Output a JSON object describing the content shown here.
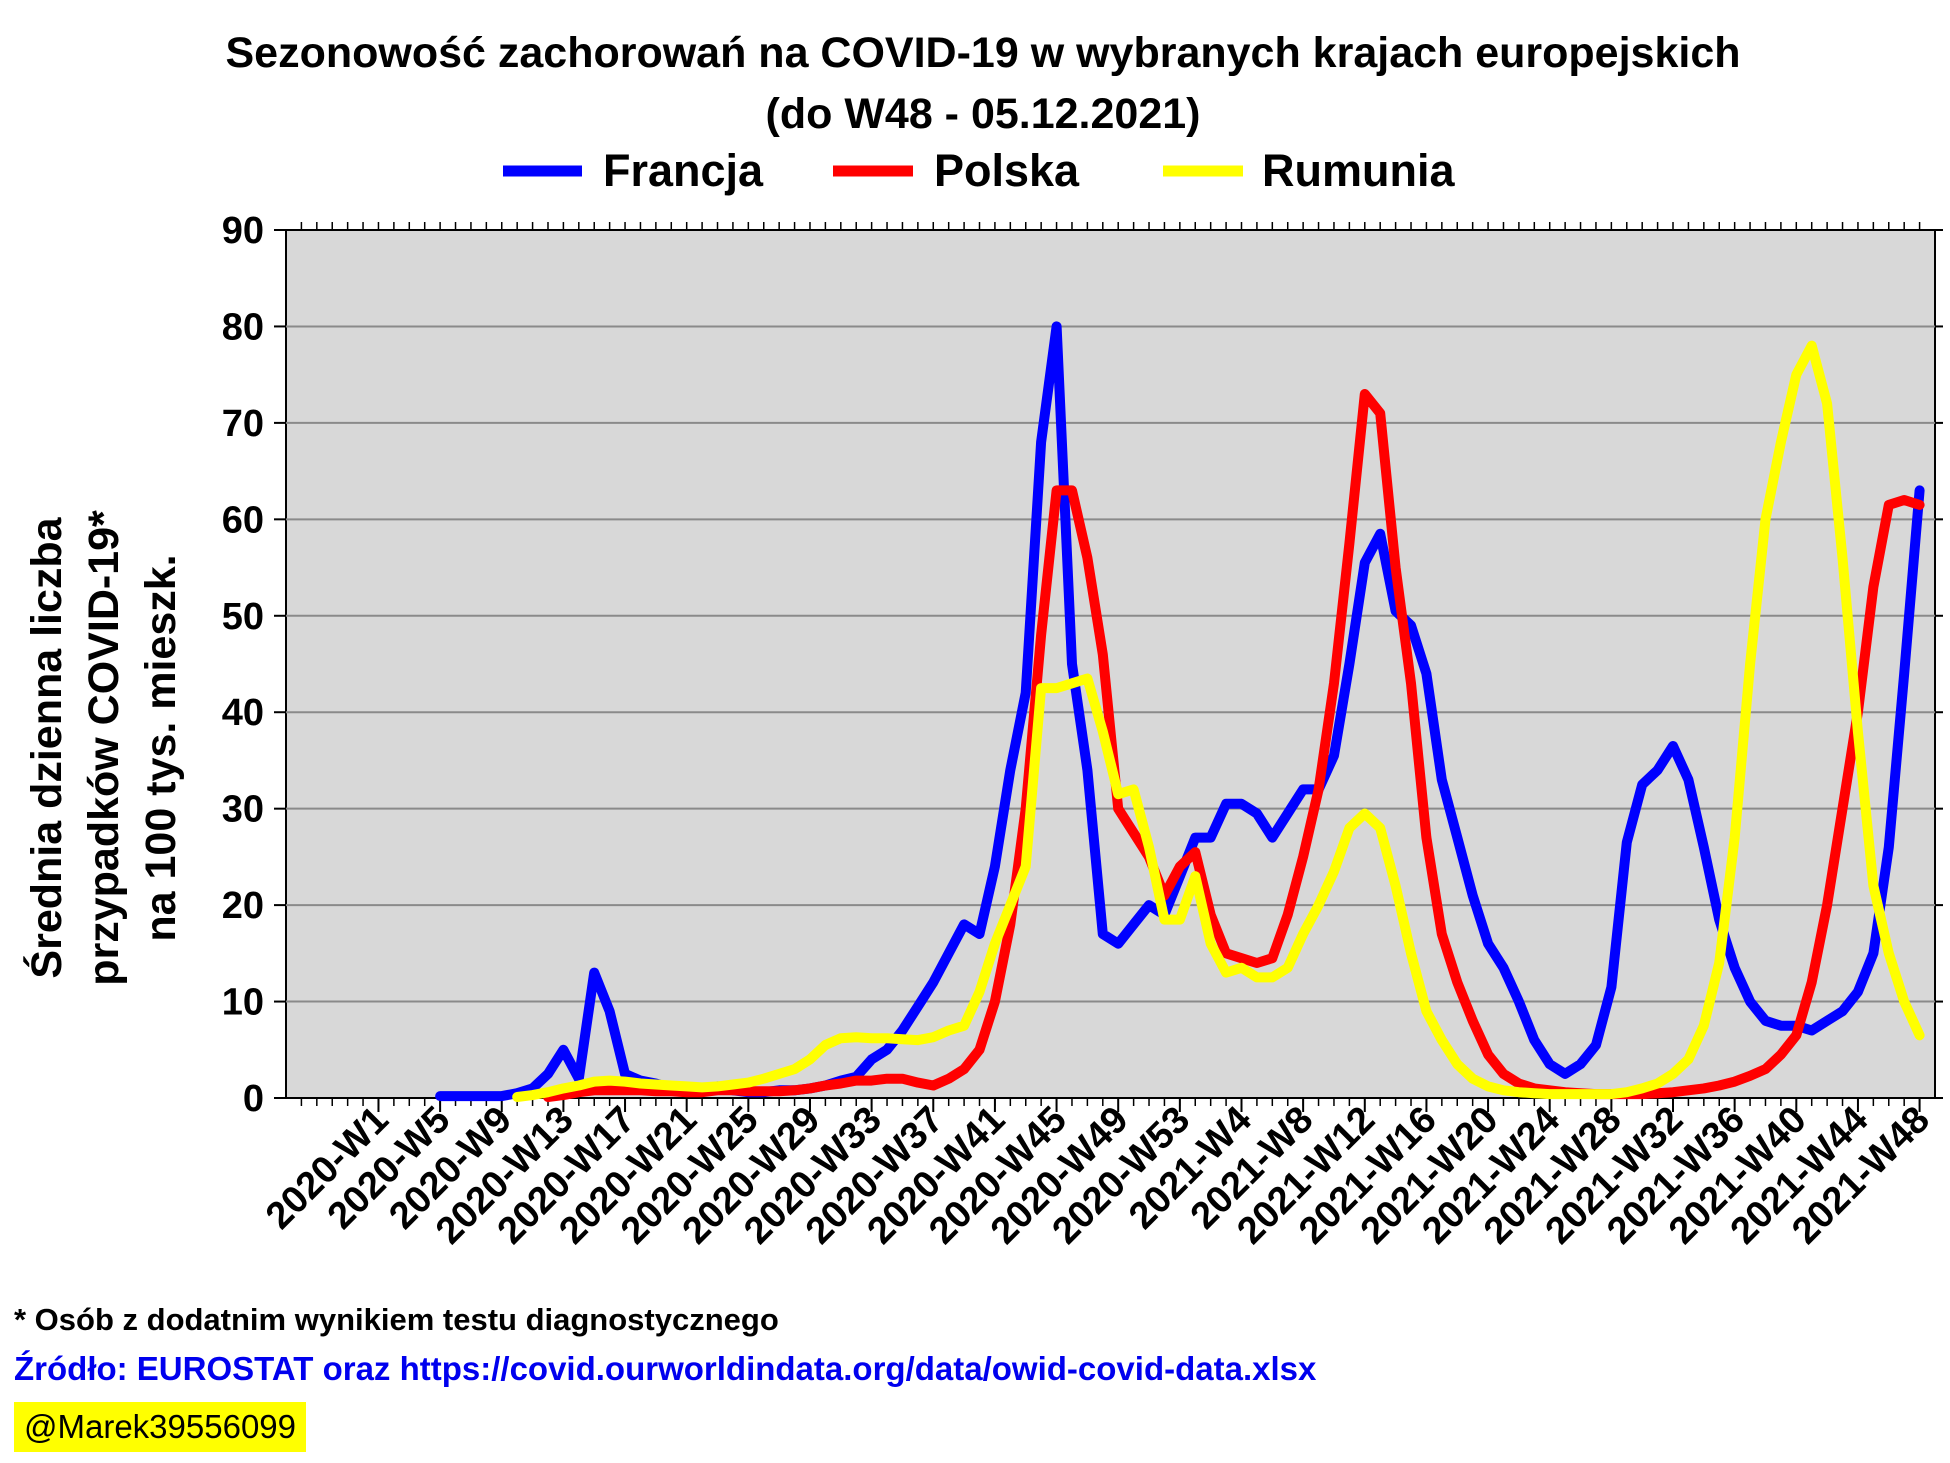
{
  "title_line1": "Sezonowość zachorowań na COVID-19 w wybranych krajach europejskich",
  "title_line2": "(do W48 - 05.12.2021)",
  "footnote": "* Osób z dodatnim wynikiem testu diagnostycznego",
  "source": "Źródło: EUROSTAT oraz https://covid.ourworldindata.org/data/owid-covid-data.xlsx",
  "handle": "@Marek39556099",
  "colors": {
    "plot_bg": "#d8d8d8",
    "grid": "#8a8a8a",
    "francja": "#0000ff",
    "polska": "#ff0000",
    "rumunia": "#ffff00"
  },
  "chart_data": {
    "type": "line",
    "title": "Sezonowość zachorowań na COVID-19 w wybranych krajach europejskich (do W48 - 05.12.2021)",
    "ylabel": [
      "Średnia dzienna liczba",
      "przypadków COVID-19*",
      "na 100 tys. mieszk."
    ],
    "xlabel": "",
    "ylim": [
      0,
      90
    ],
    "yticks": [
      0,
      10,
      20,
      30,
      40,
      50,
      60,
      70,
      80,
      90
    ],
    "grid": "horizontal",
    "legend": "top-center",
    "x_tick_labels": [
      "2020-W1",
      "2020-W5",
      "2020-W9",
      "2020-W13",
      "2020-W17",
      "2020-W21",
      "2020-W25",
      "2020-W29",
      "2020-W33",
      "2020-W37",
      "2020-W41",
      "2020-W45",
      "2020-W49",
      "2020-W53",
      "2021-W4",
      "2021-W8",
      "2021-W12",
      "2021-W16",
      "2021-W20",
      "2021-W24",
      "2021-W28",
      "2021-W32",
      "2021-W36",
      "2021-W40",
      "2021-W44",
      "2021-W48"
    ],
    "series": [
      {
        "name": "Francja",
        "color": "#0000ff",
        "points": [
          [
            "2020-W5",
            0.2
          ],
          [
            "2020-W7",
            0.2
          ],
          [
            "2020-W9",
            0.2
          ],
          [
            "2020-W10",
            0.5
          ],
          [
            "2020-W11",
            1
          ],
          [
            "2020-W12",
            2.5
          ],
          [
            "2020-W13",
            5
          ],
          [
            "2020-W14",
            2
          ],
          [
            "2020-W15",
            13
          ],
          [
            "2020-W16",
            9
          ],
          [
            "2020-W17",
            2.5
          ],
          [
            "2020-W18",
            1.8
          ],
          [
            "2020-W19",
            1.5
          ],
          [
            "2020-W20",
            1
          ],
          [
            "2020-W21",
            0.8
          ],
          [
            "2020-W22",
            0.8
          ],
          [
            "2020-W23",
            1.2
          ],
          [
            "2020-W24",
            0.8
          ],
          [
            "2020-W25",
            0.6
          ],
          [
            "2020-W26",
            0.6
          ],
          [
            "2020-W27",
            0.8
          ],
          [
            "2020-W28",
            0.8
          ],
          [
            "2020-W29",
            1
          ],
          [
            "2020-W30",
            1.3
          ],
          [
            "2020-W31",
            1.8
          ],
          [
            "2020-W32",
            2.2
          ],
          [
            "2020-W33",
            4
          ],
          [
            "2020-W34",
            5
          ],
          [
            "2020-W35",
            7
          ],
          [
            "2020-W36",
            9.5
          ],
          [
            "2020-W37",
            12
          ],
          [
            "2020-W38",
            15
          ],
          [
            "2020-W39",
            18
          ],
          [
            "2020-W40",
            17
          ],
          [
            "2020-W41",
            24
          ],
          [
            "2020-W42",
            34
          ],
          [
            "2020-W43",
            42
          ],
          [
            "2020-W44",
            68
          ],
          [
            "2020-W45",
            80
          ],
          [
            "2020-W46",
            45
          ],
          [
            "2020-W47",
            34
          ],
          [
            "2020-W48",
            17
          ],
          [
            "2020-W49",
            16
          ],
          [
            "2020-W50",
            18
          ],
          [
            "2020-W51",
            20
          ],
          [
            "2020-W52",
            19
          ],
          [
            "2020-W53",
            23
          ],
          [
            "2021-W1",
            27
          ],
          [
            "2021-W2",
            27
          ],
          [
            "2021-W3",
            30.5
          ],
          [
            "2021-W4",
            30.5
          ],
          [
            "2021-W5",
            29.5
          ],
          [
            "2021-W6",
            27
          ],
          [
            "2021-W7",
            29.5
          ],
          [
            "2021-W8",
            32
          ],
          [
            "2021-W9",
            32
          ],
          [
            "2021-W10",
            35.5
          ],
          [
            "2021-W11",
            45
          ],
          [
            "2021-W12",
            55.5
          ],
          [
            "2021-W13",
            58.5
          ],
          [
            "2021-W14",
            50.5
          ],
          [
            "2021-W15",
            49
          ],
          [
            "2021-W16",
            44
          ],
          [
            "2021-W17",
            33
          ],
          [
            "2021-W18",
            27
          ],
          [
            "2021-W19",
            21
          ],
          [
            "2021-W20",
            16
          ],
          [
            "2021-W21",
            13.5
          ],
          [
            "2021-W22",
            10
          ],
          [
            "2021-W23",
            6
          ],
          [
            "2021-W24",
            3.5
          ],
          [
            "2021-W25",
            2.5
          ],
          [
            "2021-W26",
            3.5
          ],
          [
            "2021-W27",
            5.5
          ],
          [
            "2021-W28",
            11.5
          ],
          [
            "2021-W29",
            26.5
          ],
          [
            "2021-W30",
            32.5
          ],
          [
            "2021-W31",
            34
          ],
          [
            "2021-W32",
            36.5
          ],
          [
            "2021-W33",
            33
          ],
          [
            "2021-W34",
            26
          ],
          [
            "2021-W35",
            18.5
          ],
          [
            "2021-W36",
            13.5
          ],
          [
            "2021-W37",
            10
          ],
          [
            "2021-W38",
            8
          ],
          [
            "2021-W39",
            7.5
          ],
          [
            "2021-W40",
            7.5
          ],
          [
            "2021-W41",
            7
          ],
          [
            "2021-W42",
            8
          ],
          [
            "2021-W43",
            9
          ],
          [
            "2021-W44",
            11
          ],
          [
            "2021-W45",
            15
          ],
          [
            "2021-W46",
            26
          ],
          [
            "2021-W47",
            44
          ],
          [
            "2021-W48",
            63
          ]
        ]
      },
      {
        "name": "Polska",
        "color": "#ff0000",
        "points": [
          [
            "2020-W12",
            0.1
          ],
          [
            "2020-W13",
            0.3
          ],
          [
            "2020-W14",
            0.6
          ],
          [
            "2020-W15",
            0.8
          ],
          [
            "2020-W16",
            0.8
          ],
          [
            "2020-W17",
            0.8
          ],
          [
            "2020-W18",
            0.8
          ],
          [
            "2020-W19",
            0.7
          ],
          [
            "2020-W20",
            0.7
          ],
          [
            "2020-W21",
            0.6
          ],
          [
            "2020-W22",
            0.6
          ],
          [
            "2020-W23",
            0.8
          ],
          [
            "2020-W24",
            0.8
          ],
          [
            "2020-W25",
            0.7
          ],
          [
            "2020-W26",
            0.7
          ],
          [
            "2020-W27",
            0.7
          ],
          [
            "2020-W28",
            0.8
          ],
          [
            "2020-W29",
            1
          ],
          [
            "2020-W30",
            1.3
          ],
          [
            "2020-W31",
            1.5
          ],
          [
            "2020-W32",
            1.8
          ],
          [
            "2020-W33",
            1.8
          ],
          [
            "2020-W34",
            2
          ],
          [
            "2020-W35",
            2
          ],
          [
            "2020-W36",
            1.6
          ],
          [
            "2020-W37",
            1.3
          ],
          [
            "2020-W38",
            2
          ],
          [
            "2020-W39",
            3
          ],
          [
            "2020-W40",
            5
          ],
          [
            "2020-W41",
            10
          ],
          [
            "2020-W42",
            18
          ],
          [
            "2020-W43",
            30
          ],
          [
            "2020-W44",
            48
          ],
          [
            "2020-W45",
            63
          ],
          [
            "2020-W46",
            63
          ],
          [
            "2020-W47",
            56
          ],
          [
            "2020-W48",
            46
          ],
          [
            "2020-W49",
            30
          ],
          [
            "2020-W50",
            27.5
          ],
          [
            "2020-W51",
            25
          ],
          [
            "2020-W52",
            21
          ],
          [
            "2020-W53",
            24
          ],
          [
            "2021-W1",
            25.5
          ],
          [
            "2021-W2",
            19
          ],
          [
            "2021-W3",
            15
          ],
          [
            "2021-W4",
            14.5
          ],
          [
            "2021-W5",
            14
          ],
          [
            "2021-W6",
            14.5
          ],
          [
            "2021-W7",
            19
          ],
          [
            "2021-W8",
            25
          ],
          [
            "2021-W9",
            32
          ],
          [
            "2021-W10",
            43
          ],
          [
            "2021-W11",
            57.5
          ],
          [
            "2021-W12",
            73
          ],
          [
            "2021-W13",
            71
          ],
          [
            "2021-W14",
            55
          ],
          [
            "2021-W15",
            43
          ],
          [
            "2021-W16",
            27
          ],
          [
            "2021-W17",
            17
          ],
          [
            "2021-W18",
            12
          ],
          [
            "2021-W19",
            8
          ],
          [
            "2021-W20",
            4.5
          ],
          [
            "2021-W21",
            2.5
          ],
          [
            "2021-W22",
            1.5
          ],
          [
            "2021-W23",
            1
          ],
          [
            "2021-W24",
            0.8
          ],
          [
            "2021-W25",
            0.6
          ],
          [
            "2021-W26",
            0.5
          ],
          [
            "2021-W27",
            0.4
          ],
          [
            "2021-W28",
            0.4
          ],
          [
            "2021-W29",
            0.4
          ],
          [
            "2021-W30",
            0.4
          ],
          [
            "2021-W31",
            0.5
          ],
          [
            "2021-W32",
            0.6
          ],
          [
            "2021-W33",
            0.8
          ],
          [
            "2021-W34",
            1
          ],
          [
            "2021-W35",
            1.3
          ],
          [
            "2021-W36",
            1.7
          ],
          [
            "2021-W37",
            2.3
          ],
          [
            "2021-W38",
            3
          ],
          [
            "2021-W39",
            4.5
          ],
          [
            "2021-W40",
            6.5
          ],
          [
            "2021-W41",
            12
          ],
          [
            "2021-W42",
            20
          ],
          [
            "2021-W43",
            30
          ],
          [
            "2021-W44",
            40
          ],
          [
            "2021-W45",
            53
          ],
          [
            "2021-W46",
            61.5
          ],
          [
            "2021-W47",
            62
          ],
          [
            "2021-W48",
            61.5
          ]
        ]
      },
      {
        "name": "Rumunia",
        "color": "#ffff00",
        "points": [
          [
            "2020-W10",
            0.1
          ],
          [
            "2020-W11",
            0.3
          ],
          [
            "2020-W12",
            0.6
          ],
          [
            "2020-W13",
            1
          ],
          [
            "2020-W14",
            1.3
          ],
          [
            "2020-W15",
            1.7
          ],
          [
            "2020-W16",
            1.8
          ],
          [
            "2020-W17",
            1.7
          ],
          [
            "2020-W18",
            1.5
          ],
          [
            "2020-W19",
            1.4
          ],
          [
            "2020-W20",
            1.3
          ],
          [
            "2020-W21",
            1.2
          ],
          [
            "2020-W22",
            1.1
          ],
          [
            "2020-W23",
            1.2
          ],
          [
            "2020-W24",
            1.4
          ],
          [
            "2020-W25",
            1.6
          ],
          [
            "2020-W26",
            2
          ],
          [
            "2020-W27",
            2.5
          ],
          [
            "2020-W28",
            3
          ],
          [
            "2020-W29",
            4
          ],
          [
            "2020-W30",
            5.5
          ],
          [
            "2020-W31",
            6.2
          ],
          [
            "2020-W32",
            6.3
          ],
          [
            "2020-W33",
            6.2
          ],
          [
            "2020-W34",
            6.2
          ],
          [
            "2020-W35",
            6.1
          ],
          [
            "2020-W36",
            6
          ],
          [
            "2020-W37",
            6.3
          ],
          [
            "2020-W38",
            7
          ],
          [
            "2020-W39",
            7.5
          ],
          [
            "2020-W40",
            11
          ],
          [
            "2020-W41",
            16
          ],
          [
            "2020-W42",
            20
          ],
          [
            "2020-W43",
            24
          ],
          [
            "2020-W44",
            42.5
          ],
          [
            "2020-W45",
            42.5
          ],
          [
            "2020-W46",
            43
          ],
          [
            "2020-W47",
            43.5
          ],
          [
            "2020-W48",
            38
          ],
          [
            "2020-W49",
            31.5
          ],
          [
            "2020-W50",
            32
          ],
          [
            "2020-W51",
            26
          ],
          [
            "2020-W52",
            18.5
          ],
          [
            "2020-W53",
            18.5
          ],
          [
            "2021-W1",
            23
          ],
          [
            "2021-W2",
            16
          ],
          [
            "2021-W3",
            13
          ],
          [
            "2021-W4",
            13.5
          ],
          [
            "2021-W5",
            12.5
          ],
          [
            "2021-W6",
            12.5
          ],
          [
            "2021-W7",
            13.5
          ],
          [
            "2021-W8",
            17
          ],
          [
            "2021-W9",
            20
          ],
          [
            "2021-W10",
            23.5
          ],
          [
            "2021-W11",
            28
          ],
          [
            "2021-W12",
            29.5
          ],
          [
            "2021-W13",
            28
          ],
          [
            "2021-W14",
            22
          ],
          [
            "2021-W15",
            15
          ],
          [
            "2021-W16",
            9
          ],
          [
            "2021-W17",
            6
          ],
          [
            "2021-W18",
            3.5
          ],
          [
            "2021-W19",
            2
          ],
          [
            "2021-W20",
            1.2
          ],
          [
            "2021-W21",
            0.8
          ],
          [
            "2021-W22",
            0.6
          ],
          [
            "2021-W23",
            0.5
          ],
          [
            "2021-W24",
            0.4
          ],
          [
            "2021-W25",
            0.4
          ],
          [
            "2021-W26",
            0.4
          ],
          [
            "2021-W27",
            0.4
          ],
          [
            "2021-W28",
            0.4
          ],
          [
            "2021-W29",
            0.6
          ],
          [
            "2021-W30",
            1
          ],
          [
            "2021-W31",
            1.5
          ],
          [
            "2021-W32",
            2.5
          ],
          [
            "2021-W33",
            4
          ],
          [
            "2021-W34",
            7.5
          ],
          [
            "2021-W35",
            14
          ],
          [
            "2021-W36",
            27
          ],
          [
            "2021-W37",
            45
          ],
          [
            "2021-W38",
            60
          ],
          [
            "2021-W39",
            68
          ],
          [
            "2021-W40",
            75
          ],
          [
            "2021-W41",
            78
          ],
          [
            "2021-W42",
            72
          ],
          [
            "2021-W43",
            56
          ],
          [
            "2021-W44",
            38
          ],
          [
            "2021-W45",
            22
          ],
          [
            "2021-W46",
            15
          ],
          [
            "2021-W47",
            10
          ],
          [
            "2021-W48",
            6.5
          ]
        ]
      }
    ]
  }
}
